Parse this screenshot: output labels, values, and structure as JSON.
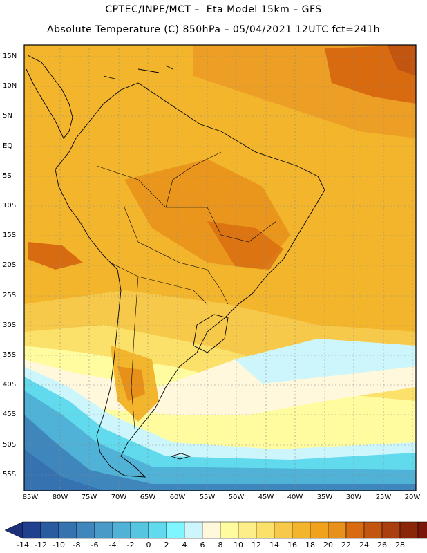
{
  "header": {
    "line1": "CPTEC/INPE/MCT –  Eta Model 15km – GFS",
    "line2": "Absolute Temperature (C) 850hPa – 05/04/2021 12UTC fct=241h"
  },
  "map": {
    "region": "South America",
    "lat_labels": [
      "15N",
      "10N",
      "5N",
      "EQ",
      "5S",
      "10S",
      "15S",
      "20S",
      "25S",
      "30S",
      "35S",
      "40S",
      "45S",
      "50S",
      "55S"
    ],
    "lon_labels": [
      "85W",
      "80W",
      "75W",
      "70W",
      "65W",
      "60W",
      "55W",
      "50W",
      "45W",
      "40W",
      "35W",
      "30W",
      "25W",
      "20W"
    ]
  },
  "colorbar": {
    "labels": [
      "-14",
      "-12",
      "-10",
      "-8",
      "-6",
      "-4",
      "-2",
      "0",
      "2",
      "4",
      "6",
      "8",
      "10",
      "12",
      "14",
      "16",
      "18",
      "20",
      "22",
      "24",
      "26",
      "28"
    ],
    "colors": [
      "#1f3f8f",
      "#2a5aa0",
      "#3672b0",
      "#3f86bd",
      "#4a9ac8",
      "#4fb2d6",
      "#56c6e0",
      "#62daee",
      "#7ff6ff",
      "#ccf6fb",
      "#fff8dc",
      "#fffca0",
      "#fdee8a",
      "#fbe06a",
      "#f7c94a",
      "#f3b52c",
      "#f0a21c",
      "#e7901a",
      "#d86b10",
      "#c25510",
      "#aa3e0e",
      "#8b2709",
      "#7a160a"
    ],
    "low_arrow_color": "#1b2f7a",
    "high_arrow_color": "#6a0a2a"
  }
}
